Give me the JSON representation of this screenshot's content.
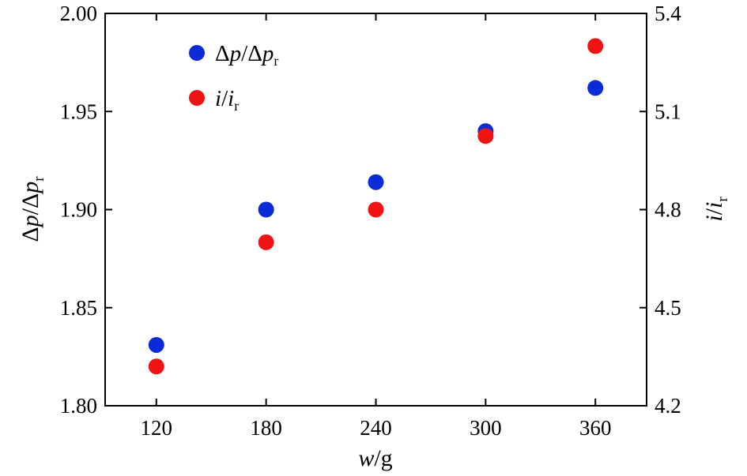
{
  "chart_data": {
    "type": "scatter",
    "x_values": [
      120,
      180,
      240,
      300,
      360
    ],
    "xlabel_main": "w",
    "xlabel_unit": "/g",
    "xlim": [
      92,
      388
    ],
    "xticks": [
      120,
      180,
      240,
      300,
      360
    ],
    "y_left": {
      "label_parts": [
        "Δ",
        "p",
        "/Δ",
        "p",
        "r"
      ],
      "lim": [
        1.8,
        2.0
      ],
      "ticks": [
        "1.80",
        "1.85",
        "1.90",
        "1.95",
        "2.00"
      ]
    },
    "y_right": {
      "label_parts": [
        "i",
        "/",
        "i",
        "r"
      ],
      "lim": [
        4.2,
        5.4
      ],
      "ticks": [
        "4.2",
        "4.5",
        "4.8",
        "5.1",
        "5.4"
      ]
    },
    "series": [
      {
        "name_parts": [
          "Δ",
          "p",
          "/Δ",
          "p",
          "r"
        ],
        "axis": "left",
        "color": "#0a2bd6",
        "values": [
          1.831,
          1.9,
          1.914,
          1.94,
          1.962
        ]
      },
      {
        "name_parts": [
          "i",
          "/",
          "i",
          "r"
        ],
        "axis": "right",
        "color": "#f01414",
        "values": [
          4.32,
          4.7,
          4.8,
          5.025,
          5.3
        ]
      }
    ],
    "legend_position": "top-left",
    "grid": false
  }
}
